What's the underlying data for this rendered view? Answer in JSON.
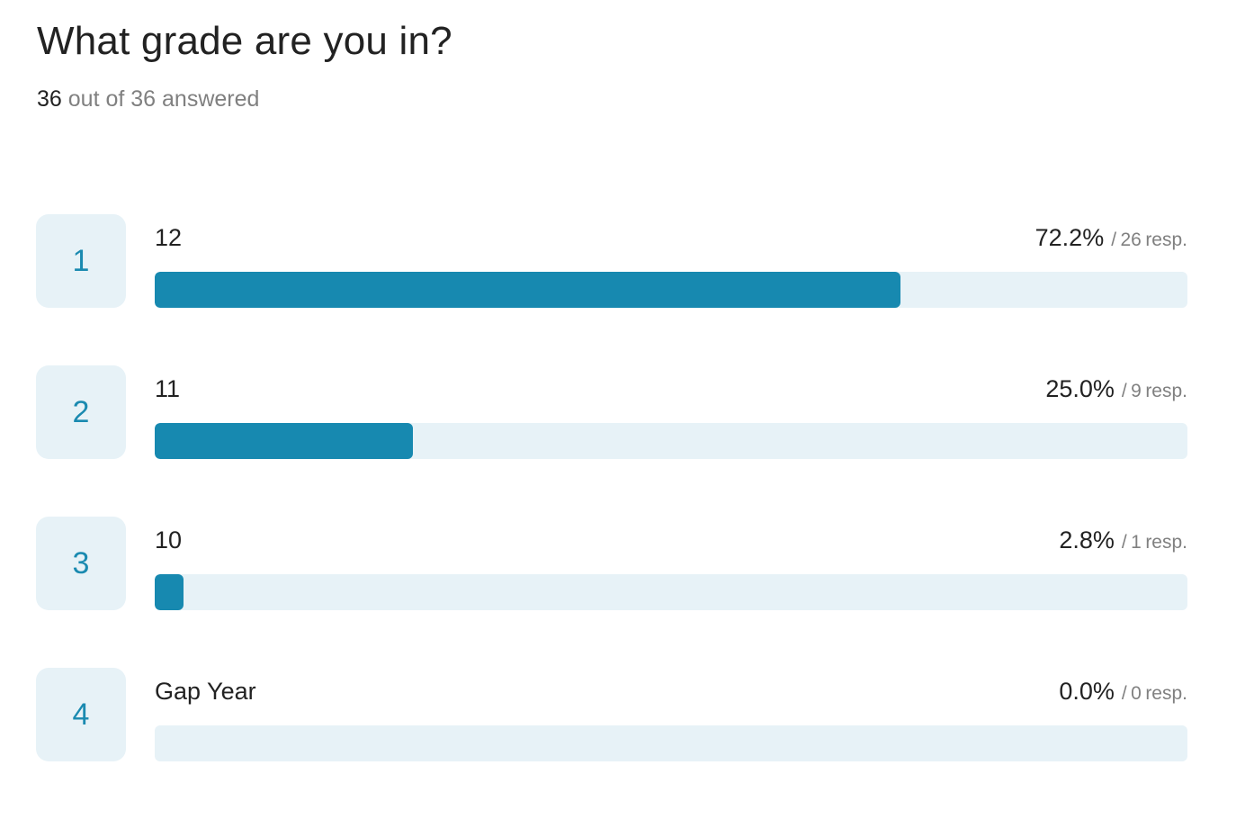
{
  "question": {
    "title": "What grade are you in?",
    "answered": "36",
    "answered_suffix": " out of 36 answered"
  },
  "accent_color": "#1789b0",
  "track_color": "#e7f2f7",
  "options": [
    {
      "rank": "1",
      "label": "12",
      "percent": "72.2%",
      "separator": "/",
      "count": "26",
      "unit": "resp.",
      "fraction": 0.722
    },
    {
      "rank": "2",
      "label": "11",
      "percent": "25.0%",
      "separator": "/",
      "count": "9",
      "unit": "resp.",
      "fraction": 0.25
    },
    {
      "rank": "3",
      "label": "10",
      "percent": "2.8%",
      "separator": "/",
      "count": "1",
      "unit": "resp.",
      "fraction": 0.028
    },
    {
      "rank": "4",
      "label": "Gap Year",
      "percent": "0.0%",
      "separator": "/",
      "count": "0",
      "unit": "resp.",
      "fraction": 0.0
    }
  ]
}
